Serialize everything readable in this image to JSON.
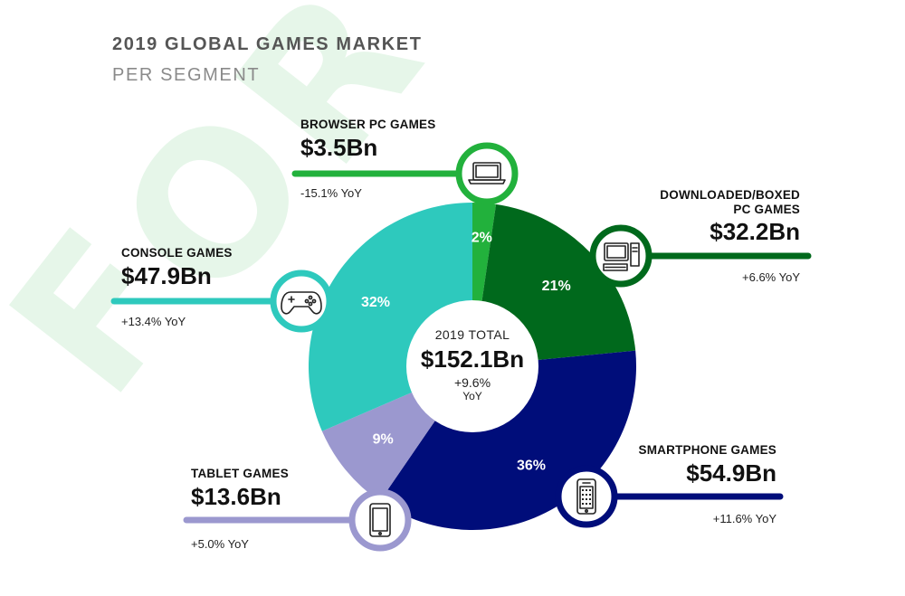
{
  "title": "2019 GLOBAL GAMES MARKET",
  "subtitle": "PER SEGMENT",
  "watermark": "FOR",
  "center": {
    "label": "2019 TOTAL",
    "value": "$152.1Bn",
    "growth": "+9.6%",
    "growth_unit": "YoY"
  },
  "chart_data": {
    "type": "pie",
    "title": "2019 GLOBAL GAMES MARKET",
    "subtitle": "PER SEGMENT",
    "categories": [
      "BROWSER PC GAMES",
      "DOWNLOADED/BOXED PC GAMES",
      "SMARTPHONE GAMES",
      "TABLET GAMES",
      "CONSOLE GAMES"
    ],
    "values": [
      3.5,
      32.2,
      54.9,
      13.6,
      47.9
    ],
    "percent_labels": [
      "2%",
      "21%",
      "36%",
      "9%",
      "32%"
    ],
    "value_labels": [
      "$3.5Bn",
      "$32.2Bn",
      "$54.9Bn",
      "$13.6Bn",
      "$47.9Bn"
    ],
    "yoy_labels": [
      "-15.1% YoY",
      "+6.6% YoY",
      "+11.6% YoY",
      "+5.0% YoY",
      "+13.4% YoY"
    ],
    "name_lines": [
      [
        "BROWSER PC GAMES"
      ],
      [
        "DOWNLOADED/BOXED",
        "PC GAMES"
      ],
      [
        "SMARTPHONE GAMES"
      ],
      [
        "TABLET GAMES"
      ],
      [
        "CONSOLE GAMES"
      ]
    ],
    "colors": [
      "#22b13c",
      "#00691c",
      "#000d7a",
      "#9b98cf",
      "#2ec9bd"
    ],
    "icons": [
      "laptop-icon",
      "desktop-computer-icon",
      "smartphone-icon",
      "tablet-icon",
      "gamepad-icon"
    ]
  }
}
